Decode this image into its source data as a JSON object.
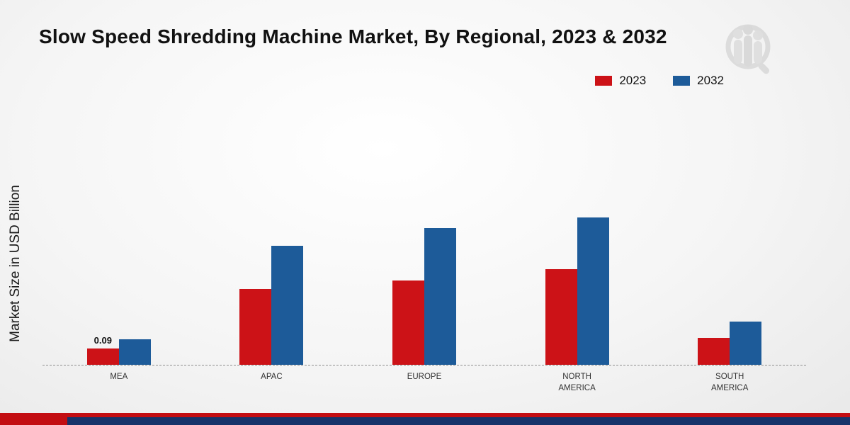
{
  "header": {
    "title": "Slow Speed Shredding Machine Market, By Regional, 2023 & 2032"
  },
  "chart_data": {
    "type": "bar",
    "title": "Slow Speed Shredding Machine Market, By Regional, 2023 & 2032",
    "categories": [
      "MEA",
      "APAC",
      "EUROPE",
      "NORTH AMERICA",
      "SOUTH AMERICA"
    ],
    "series": [
      {
        "name": "2023",
        "color": "#cc1217",
        "values": [
          0.09,
          0.42,
          0.47,
          0.53,
          0.15
        ]
      },
      {
        "name": "2032",
        "color": "#1d5b99",
        "values": [
          0.14,
          0.66,
          0.76,
          0.82,
          0.24
        ]
      }
    ],
    "xlabel": "",
    "ylabel": "Market Size in USD Billion",
    "ylim": [
      0,
      1.3
    ],
    "grid": false,
    "legend_position": "top-right",
    "annotations": [
      {
        "category": "MEA",
        "series": "2023",
        "text": "0.09"
      }
    ]
  },
  "colors": {
    "bar_2023": "#cc1217",
    "bar_2032": "#1d5b99",
    "footer_red": "#c30d12",
    "footer_navy": "#17336a",
    "baseline": "#8f8f8f"
  }
}
